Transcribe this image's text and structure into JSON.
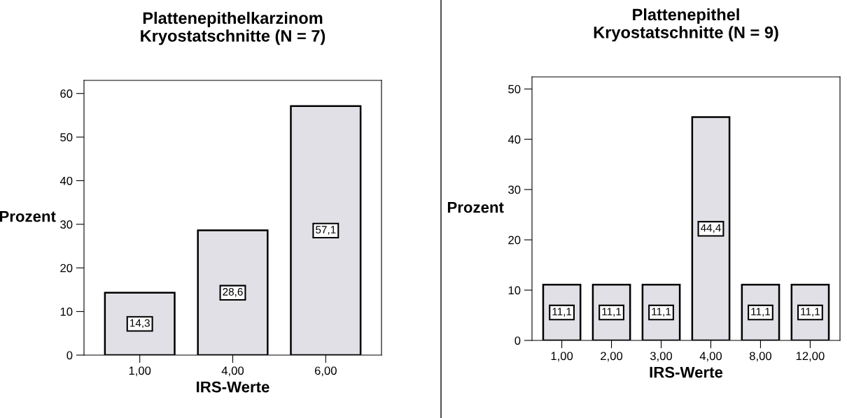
{
  "chart_data": [
    {
      "type": "bar",
      "title": "Plattenepithelkarzinom\nKryostatschnitte (N = 7)",
      "xlabel": "IRS-Werte",
      "ylabel": "Prozent",
      "categories": [
        "1,00",
        "4,00",
        "6,00"
      ],
      "values": [
        14.3,
        28.6,
        57.1
      ],
      "value_labels": [
        "14,3",
        "28,6",
        "57,1"
      ],
      "color": "#e1e0e6",
      "ylim": [
        0,
        63
      ],
      "yticks": [
        0,
        10,
        20,
        30,
        40,
        50,
        60
      ],
      "grid": false,
      "legend": false
    },
    {
      "type": "bar",
      "title": "Plattenepithel\nKryostatschnitte (N = 9)",
      "xlabel": "IRS-Werte",
      "ylabel": "Prozent",
      "categories": [
        "1,00",
        "2,00",
        "3,00",
        "4,00",
        "8,00",
        "12,00"
      ],
      "values": [
        11.1,
        11.1,
        11.1,
        44.4,
        11.1,
        11.1
      ],
      "value_labels": [
        "11,1",
        "11,1",
        "11,1",
        "44,4",
        "11,1",
        "11,1"
      ],
      "color": "#e1e0e6",
      "ylim": [
        0,
        52.4
      ],
      "yticks": [
        0,
        10,
        20,
        30,
        40,
        50
      ],
      "grid": false,
      "legend": false
    }
  ]
}
